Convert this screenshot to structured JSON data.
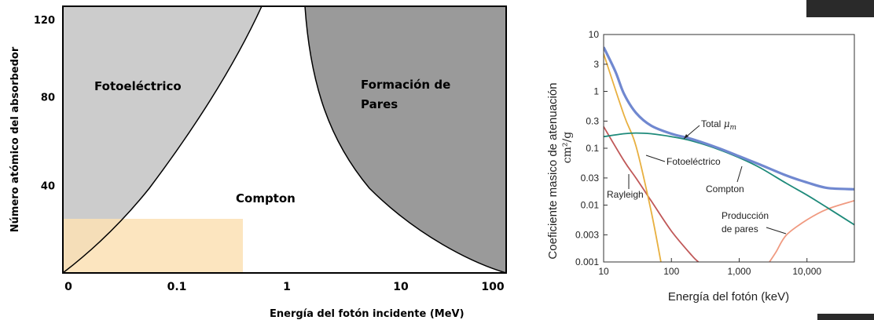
{
  "chart_data": [
    {
      "type": "area",
      "title": "",
      "xlabel": "Energía del fotón incidente (MeV)",
      "ylabel": "Número atómico del absorbedor",
      "x_scale": "log",
      "x_ticks": [
        "0",
        "0.1",
        "1",
        "10",
        "100"
      ],
      "y_ticks": [
        "120",
        "80",
        "40"
      ],
      "ylim": [
        0,
        120
      ],
      "regions": [
        {
          "name": "Fotoeléctrico",
          "color": "#cccccc"
        },
        {
          "name": "Compton",
          "color": "#ffffff"
        },
        {
          "name": "Formación de Pares",
          "color": "#9a9a9a"
        }
      ],
      "region_labels": {
        "photoelectric": "Fotoeléctrico",
        "compton": "Compton",
        "pair_line1": "Formación de",
        "pair_line2": "Pares"
      },
      "highlight_color": "#fce0b4"
    },
    {
      "type": "line",
      "title": "",
      "xlabel": "Energía del fotón (keV)",
      "ylabel_line1": "Coeficiente masico de atenuación",
      "ylabel_line2": "cm²/g",
      "x_scale": "log",
      "y_scale": "log",
      "xlim": [
        10,
        50000
      ],
      "ylim": [
        0.001,
        10
      ],
      "x_ticks": [
        "10",
        "100",
        "1,000",
        "10,000"
      ],
      "y_ticks": [
        "10",
        "3",
        "1",
        "0.3",
        "0.1",
        "0.03",
        "0.01",
        "0.003",
        "0.001"
      ],
      "series": [
        {
          "name": "Total μm",
          "color": "#7088d0",
          "x": [
            10,
            15,
            20,
            30,
            50,
            100,
            200,
            500,
            1000,
            2000,
            5000,
            10000,
            20000,
            50000
          ],
          "y": [
            6.0,
            2.2,
            0.9,
            0.42,
            0.25,
            0.18,
            0.145,
            0.1,
            0.072,
            0.052,
            0.033,
            0.025,
            0.02,
            0.019
          ]
        },
        {
          "name": "Compton",
          "color": "#1e8a7a",
          "x": [
            10,
            20,
            30,
            50,
            100,
            200,
            500,
            1000,
            2000,
            5000,
            10000,
            20000,
            50000
          ],
          "y": [
            0.16,
            0.18,
            0.185,
            0.18,
            0.16,
            0.135,
            0.095,
            0.068,
            0.046,
            0.024,
            0.015,
            0.009,
            0.0045
          ]
        },
        {
          "name": "Fotoeléctrico",
          "color": "#e8b040",
          "x": [
            10,
            20,
            30,
            50,
            70
          ],
          "y": [
            4.6,
            0.38,
            0.11,
            0.008,
            0.001
          ]
        },
        {
          "name": "Rayleigh",
          "color": "#c05858",
          "x": [
            10,
            20,
            30,
            50,
            100,
            200,
            250
          ],
          "y": [
            0.24,
            0.06,
            0.03,
            0.012,
            0.0035,
            0.0013,
            0.001
          ]
        },
        {
          "name": "Producción de pares",
          "color": "#f09a80",
          "x": [
            2800,
            3500,
            5000,
            10000,
            20000,
            50000
          ],
          "y": [
            0.001,
            0.0015,
            0.003,
            0.0055,
            0.0085,
            0.012
          ]
        }
      ],
      "annotations": {
        "total_prefix": "Total",
        "total_symbol": "μ",
        "total_sub": "m",
        "photo": "Fotoeléctrico",
        "compton": "Compton",
        "rayleigh": "Rayleigh",
        "pair_line1": "Producción",
        "pair_line2": "de pares"
      }
    }
  ]
}
